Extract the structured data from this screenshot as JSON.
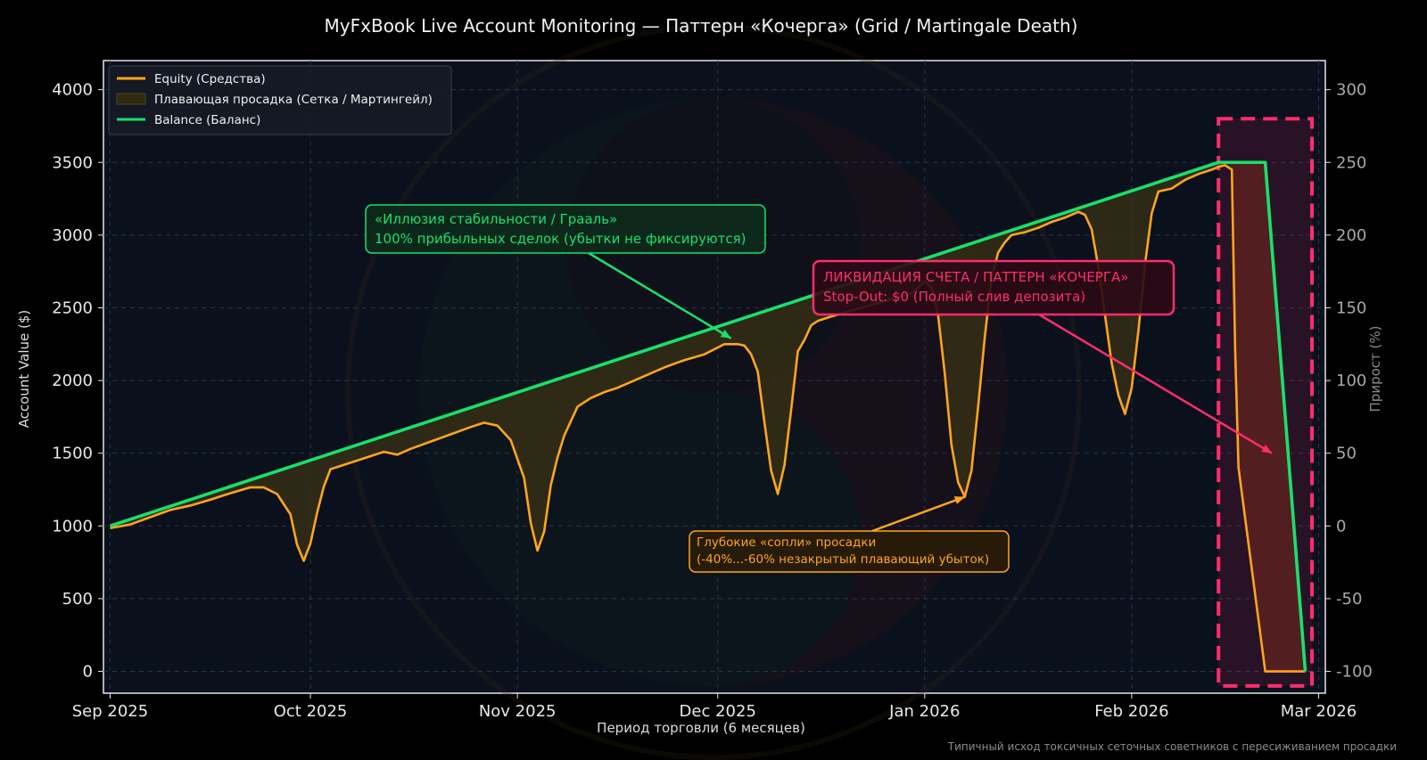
{
  "chart_data": {
    "type": "line",
    "title": "MyFxBook Live Account Monitoring — Паттерн «Кочерга» (Grid / Martingale Death)",
    "xlabel": "Период торговли (6 месяцев)",
    "ylabel": "Account Value ($)",
    "ylabel_right": "Прирост (%)",
    "footnote": "Типичный исход токсичных сеточных советников с пересиживанием просадки",
    "x_ticks": [
      "Sep 2025",
      "Oct 2025",
      "Nov 2025",
      "Dec 2025",
      "Jan 2026",
      "Feb 2026",
      "Mar 2026"
    ],
    "x_tick_days": [
      0,
      30,
      61,
      91,
      122,
      153,
      181
    ],
    "xlim_days": [
      -1,
      182
    ],
    "y_ticks": [
      0,
      500,
      1000,
      1500,
      2000,
      2500,
      3000,
      3500,
      4000
    ],
    "ylim": [
      -150,
      4200
    ],
    "y_right_ticks": [
      -100,
      -50,
      0,
      50,
      100,
      150,
      200,
      250,
      300
    ],
    "grid": true,
    "legend_position": "top-left",
    "legend": [
      {
        "label": "Equity (Средства)",
        "kind": "line",
        "color": "#ffa51f"
      },
      {
        "label": "Плавающая просадка (Сетка / Мартингейл)",
        "kind": "patch",
        "color": "#2e2a10"
      },
      {
        "label": "Balance (Баланс)",
        "kind": "line",
        "color": "#18e06c"
      }
    ],
    "series": [
      {
        "name": "Balance (Баланс)",
        "color": "#18e06c",
        "points": [
          [
            0,
            1000
          ],
          [
            166,
            3500
          ],
          [
            173,
            3500
          ],
          [
            179,
            0
          ]
        ]
      },
      {
        "name": "Equity (Средства)",
        "color": "#ffa51f",
        "points": [
          [
            0,
            985
          ],
          [
            3,
            1010
          ],
          [
            6,
            1060
          ],
          [
            9,
            1110
          ],
          [
            12,
            1140
          ],
          [
            15,
            1180
          ],
          [
            18,
            1225
          ],
          [
            21,
            1265
          ],
          [
            23,
            1265
          ],
          [
            25,
            1220
          ],
          [
            27,
            1080
          ],
          [
            28,
            870
          ],
          [
            29,
            760
          ],
          [
            30,
            880
          ],
          [
            31,
            1090
          ],
          [
            32,
            1270
          ],
          [
            33,
            1390
          ],
          [
            35,
            1420
          ],
          [
            37,
            1450
          ],
          [
            39,
            1480
          ],
          [
            41,
            1510
          ],
          [
            43,
            1490
          ],
          [
            45,
            1530
          ],
          [
            48,
            1580
          ],
          [
            51,
            1630
          ],
          [
            54,
            1680
          ],
          [
            56,
            1710
          ],
          [
            58,
            1690
          ],
          [
            60,
            1590
          ],
          [
            62,
            1330
          ],
          [
            63,
            1020
          ],
          [
            64,
            830
          ],
          [
            65,
            960
          ],
          [
            66,
            1280
          ],
          [
            67,
            1470
          ],
          [
            68,
            1620
          ],
          [
            69,
            1720
          ],
          [
            70,
            1820
          ],
          [
            72,
            1880
          ],
          [
            74,
            1920
          ],
          [
            76,
            1950
          ],
          [
            78,
            1990
          ],
          [
            80,
            2030
          ],
          [
            83,
            2090
          ],
          [
            86,
            2140
          ],
          [
            89,
            2180
          ],
          [
            92,
            2250
          ],
          [
            94,
            2250
          ],
          [
            95,
            2240
          ],
          [
            96,
            2180
          ],
          [
            97,
            2060
          ],
          [
            98,
            1710
          ],
          [
            99,
            1380
          ],
          [
            100,
            1220
          ],
          [
            101,
            1420
          ],
          [
            102,
            1800
          ],
          [
            103,
            2200
          ],
          [
            104,
            2280
          ],
          [
            105,
            2380
          ],
          [
            106,
            2410
          ],
          [
            108,
            2440
          ],
          [
            111,
            2480
          ],
          [
            114,
            2520
          ],
          [
            117,
            2560
          ],
          [
            120,
            2600
          ],
          [
            122,
            2680
          ],
          [
            123,
            2640
          ],
          [
            124,
            2450
          ],
          [
            125,
            2050
          ],
          [
            126,
            1560
          ],
          [
            127,
            1300
          ],
          [
            128,
            1200
          ],
          [
            129,
            1380
          ],
          [
            130,
            1820
          ],
          [
            131,
            2300
          ],
          [
            132,
            2700
          ],
          [
            133,
            2880
          ],
          [
            134,
            2950
          ],
          [
            135,
            3000
          ],
          [
            137,
            3020
          ],
          [
            139,
            3050
          ],
          [
            141,
            3090
          ],
          [
            143,
            3120
          ],
          [
            145,
            3160
          ],
          [
            146,
            3140
          ],
          [
            147,
            3040
          ],
          [
            148,
            2780
          ],
          [
            149,
            2450
          ],
          [
            150,
            2120
          ],
          [
            151,
            1900
          ],
          [
            152,
            1770
          ],
          [
            153,
            1950
          ],
          [
            154,
            2340
          ],
          [
            155,
            2800
          ],
          [
            156,
            3150
          ],
          [
            157,
            3300
          ],
          [
            159,
            3320
          ],
          [
            161,
            3380
          ],
          [
            163,
            3420
          ],
          [
            165,
            3450
          ],
          [
            166,
            3470
          ],
          [
            167,
            3480
          ],
          [
            168,
            3450
          ],
          [
            168.5,
            2200
          ],
          [
            169,
            1400
          ],
          [
            173,
            0
          ],
          [
            179,
            0
          ]
        ]
      }
    ],
    "annotations": [
      {
        "text_lines": [
          "«Иллюзия стабильности / Грааль»",
          "100% прибыльных сделок (убытки не фиксируются)"
        ],
        "color": "#18e06c",
        "target": [
          93,
          2290
        ]
      },
      {
        "text_lines": [
          "ЛИКВИДАЦИЯ СЧЕТА / ПАТТЕРН «КОЧЕРГА»",
          "Stop-Out: $0 (Полный слив депозита)"
        ],
        "color": "#ff2d6a",
        "target": [
          174,
          1500
        ]
      },
      {
        "text_lines": [
          "Глубокие «сопли» просадки",
          "(-40%...-60% незакрытый плавающий убыток)"
        ],
        "color": "#ffa51f",
        "target": [
          128,
          1200
        ]
      }
    ],
    "highlight": {
      "x_range": [
        166,
        180
      ],
      "y_range": [
        -100,
        3800
      ],
      "color": "#ff2d6a"
    }
  }
}
